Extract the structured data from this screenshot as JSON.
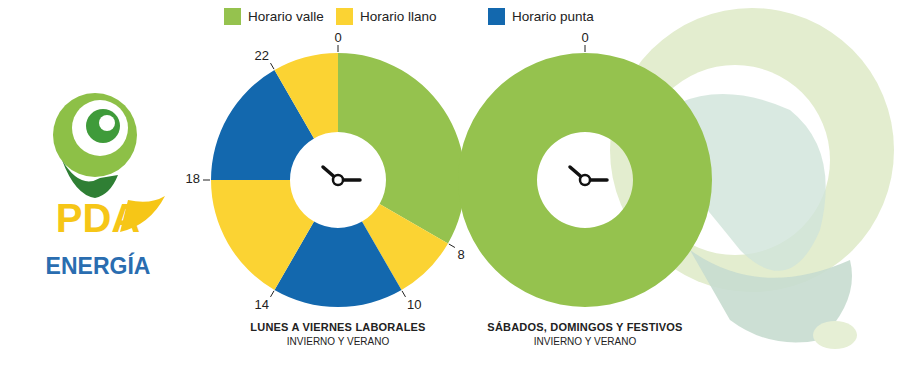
{
  "logo": {
    "text": "PDA",
    "subtext": "ENERGÍA"
  },
  "chart_data": [
    {
      "type": "donut",
      "title": "LUNES A VIERNES LABORALES",
      "subtitle": "INVIERNO Y VERANO",
      "categories": [
        "Horario valle",
        "Horario llano",
        "Horario punta",
        "Horario llano",
        "Horario punta",
        "Horario llano"
      ],
      "values": [
        8,
        2,
        4,
        4,
        4,
        2
      ],
      "colors": [
        "#95c24e",
        "#fbd333",
        "#1368ae",
        "#fbd333",
        "#1368ae",
        "#fbd333"
      ],
      "xlim": [
        0,
        24
      ],
      "xticks": [
        0,
        8,
        10,
        14,
        18,
        22
      ]
    },
    {
      "type": "donut",
      "title": "SÁBADOS, DOMINGOS Y FESTIVOS",
      "subtitle": "INVIERNO Y VERANO",
      "categories": [
        "Horario valle"
      ],
      "values": [
        24
      ],
      "colors": [
        "#95c24e"
      ],
      "xlim": [
        0,
        24
      ],
      "xticks": [
        0
      ]
    }
  ]
}
